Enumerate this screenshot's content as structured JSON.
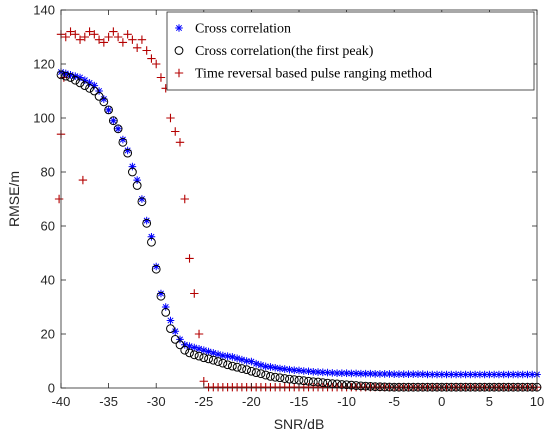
{
  "chart_data": {
    "type": "scatter",
    "xlabel": "SNR/dB",
    "ylabel": "RMSE/m",
    "xlim": [
      -40,
      10
    ],
    "ylim": [
      0,
      140
    ],
    "xticks": [
      "-40",
      "-35",
      "-30",
      "-25",
      "-20",
      "-15",
      "-10",
      "-5",
      "0",
      "5",
      "10"
    ],
    "yticks": [
      "0",
      "20",
      "40",
      "60",
      "80",
      "100",
      "120",
      "140"
    ],
    "grid": false,
    "legend_position": "top-right",
    "x": [
      -40,
      -39.5,
      -39,
      -38.5,
      -38,
      -37.5,
      -37,
      -36.5,
      -36,
      -35.5,
      -35,
      -34.5,
      -34,
      -33.5,
      -33,
      -32.5,
      -32,
      -31.5,
      -31,
      -30.5,
      -30,
      -29.5,
      -29,
      -28.5,
      -28,
      -27.5,
      -27,
      -26.5,
      -26,
      -25.5,
      -25,
      -24.5,
      -24,
      -23.5,
      -23,
      -22.5,
      -22,
      -21.5,
      -21,
      -20.5,
      -20,
      -19.5,
      -19,
      -18.5,
      -18,
      -17.5,
      -17,
      -16.5,
      -16,
      -15.5,
      -15,
      -14.5,
      -14,
      -13.5,
      -13,
      -12.5,
      -12,
      -11.5,
      -11,
      -10.5,
      -10,
      -9.5,
      -9,
      -8.5,
      -8,
      -7.5,
      -7,
      -6.5,
      -6,
      -5.5,
      -5,
      -4.5,
      -4,
      -3.5,
      -3,
      -2.5,
      -2,
      -1.5,
      -1,
      -0.5,
      0,
      0.5,
      1,
      1.5,
      2,
      2.5,
      3,
      3.5,
      4,
      4.5,
      5,
      5.5,
      6,
      6.5,
      7,
      7.5,
      8,
      8.5,
      9,
      9.5,
      10
    ],
    "series": [
      {
        "name": "Cross correlation",
        "marker": "asterisk",
        "color": "#0000ff",
        "values": [
          117,
          116.5,
          116,
          115.5,
          115,
          114,
          113,
          112,
          110,
          107,
          103,
          99,
          96,
          92,
          88,
          82,
          77,
          70,
          62,
          56,
          45,
          35,
          30,
          25,
          21,
          18,
          16,
          15.5,
          15,
          14.5,
          14,
          13.5,
          13,
          12.5,
          12,
          11.8,
          11.5,
          11,
          10.5,
          10,
          9.8,
          9,
          8.5,
          8,
          7.8,
          7.5,
          7.2,
          7,
          6.8,
          6.6,
          6.5,
          6.3,
          6.2,
          6,
          5.9,
          5.8,
          5.7,
          5.6,
          5.5,
          5.5,
          5.5,
          5.4,
          5.4,
          5.3,
          5.3,
          5.3,
          5.2,
          5.2,
          5.2,
          5.2,
          5.1,
          5.1,
          5.1,
          5.1,
          5.1,
          5.1,
          5.1,
          5,
          5,
          5,
          5,
          5,
          5,
          5,
          5,
          5,
          5,
          5,
          5,
          5,
          5,
          5,
          5,
          5,
          5,
          5,
          5,
          5,
          5,
          5,
          5
        ]
      },
      {
        "name": "Cross correlation(the first peak)",
        "marker": "circle",
        "color": "#000000",
        "values": [
          116,
          115.5,
          115,
          114,
          113,
          112,
          111,
          110,
          108,
          106,
          103,
          99,
          96,
          91,
          87,
          80,
          75,
          69,
          61,
          54,
          44,
          34,
          28,
          22,
          18,
          16,
          14,
          13,
          12.3,
          11.8,
          11.2,
          10.8,
          10.3,
          9.8,
          9.2,
          8.6,
          8.1,
          7.7,
          7.2,
          6.8,
          6.2,
          5.7,
          5.3,
          4.8,
          4.3,
          4,
          3.8,
          3.5,
          3.3,
          3.1,
          2.9,
          2.7,
          2.5,
          2.3,
          2.2,
          2,
          1.8,
          1.6,
          1.5,
          1.3,
          1.2,
          1.05,
          0.9,
          0.8,
          0.7,
          0.6,
          0.5,
          0.45,
          0.4,
          0.35,
          0.3,
          0.3,
          0.3,
          0.3,
          0.3,
          0.3,
          0.3,
          0.3,
          0.3,
          0.3,
          0.3,
          0.3,
          0.3,
          0.3,
          0.3,
          0.3,
          0.3,
          0.3,
          0.3,
          0.3,
          0.3,
          0.3,
          0.3,
          0.3,
          0.3,
          0.3,
          0.3,
          0.3,
          0.3,
          0.3,
          0.3
        ]
      },
      {
        "name": "Time reversal based pulse ranging method",
        "marker": "plus",
        "color": "#b40000",
        "values": [
          131,
          130,
          132,
          131,
          129,
          130,
          132,
          131,
          129,
          128,
          130,
          132,
          130,
          128,
          131,
          129,
          126,
          129,
          125,
          122,
          120,
          115,
          111,
          100,
          95,
          91,
          70,
          48,
          35,
          20,
          2.5,
          0.3,
          0.3,
          0.3,
          0.3,
          0.3,
          0.3,
          0.3,
          0.3,
          0.3,
          0.3,
          0.3,
          0.3,
          0.3,
          0.3,
          0.3,
          0.3,
          0.3,
          0.3,
          0.3,
          0.3,
          0.3,
          0.3,
          0.3,
          0.3,
          0.3,
          0.3,
          0.3,
          0.3,
          0.3,
          0.3,
          0.3,
          0.3,
          0.3,
          0.3,
          0.3,
          0.3,
          0.3,
          0.3,
          0.3,
          0.3,
          0.3,
          0.3,
          0.3,
          0.3,
          0.3,
          0.3,
          0.3,
          0.3,
          0.3,
          0.3,
          0.3,
          0.3,
          0.3,
          0.3,
          0.3,
          0.3,
          0.3,
          0.3,
          0.3,
          0.3,
          0.3,
          0.3,
          0.3,
          0.3,
          0.3,
          0.3,
          0.3,
          0.3,
          0.3,
          0.3
        ]
      }
    ],
    "extra_points": [
      {
        "series": 2,
        "x": -37.7,
        "y": 77
      },
      {
        "series": 2,
        "x": -39.7,
        "y": 115
      },
      {
        "series": 2,
        "x": -40,
        "y": 94
      },
      {
        "series": 2,
        "x": -40.2,
        "y": 70
      }
    ]
  }
}
